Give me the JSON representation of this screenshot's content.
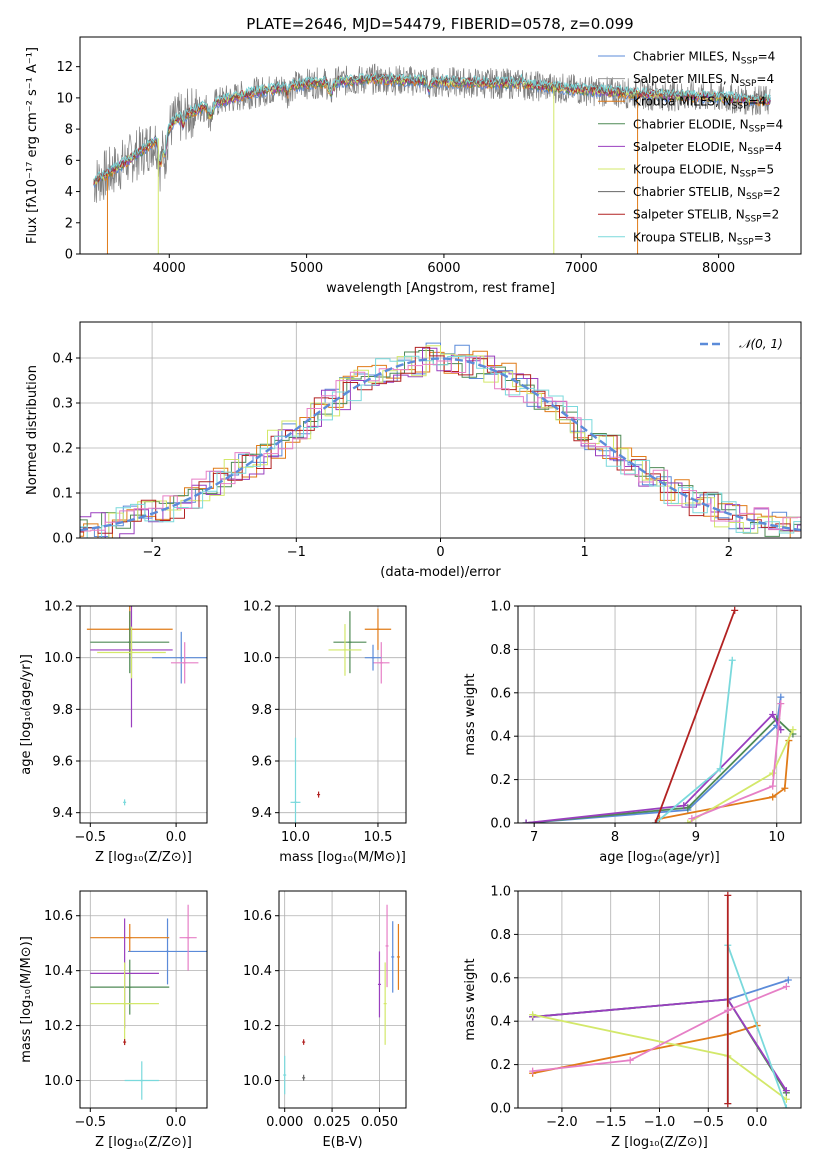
{
  "title": "PLATE=2646, MJD=54479, FIBERID=0578, z=0.099",
  "colors": {
    "Chabrier MILES": "#5b8bd9",
    "Salpeter MILES": "#9a9a9a",
    "Kroupa MILES": "#e07b18",
    "Chabrier ELODIE": "#4f8a55",
    "Salpeter ELODIE": "#9a3fbf",
    "Kroupa ELODIE": "#d3e86a",
    "Chabrier STELIB": "#666666",
    "Salpeter STELIB": "#b22222",
    "Kroupa STELIB": "#7ad9dc",
    "pink": "#e67fc6",
    "gaussian": "#5b8bd9"
  },
  "chart_data": [
    {
      "id": "spectrum",
      "type": "line",
      "title": "PLATE=2646, MJD=54479, FIBERID=0578, z=0.099",
      "xlabel": "wavelength [Angstrom, rest frame]",
      "ylabel": "Flux [fλ10⁻¹⁷ erg cm⁻² s⁻¹ A⁻¹]",
      "xlim": [
        3350,
        8600
      ],
      "ylim": [
        0,
        13.9
      ],
      "xticks": [
        4000,
        5000,
        6000,
        7000,
        8000
      ],
      "yticks": [
        0,
        2,
        4,
        6,
        8,
        10,
        12
      ],
      "legend_position": "right",
      "legend": [
        {
          "text": "Chabrier MILES, N",
          "sub": "SSP",
          "tail": "=4"
        },
        {
          "text": "Salpeter MILES, N",
          "sub": "SSP",
          "tail": "=4"
        },
        {
          "text": "Kroupa MILES, N",
          "sub": "SSP",
          "tail": "=4"
        },
        {
          "text": "Chabrier ELODIE, N",
          "sub": "SSP",
          "tail": "=4"
        },
        {
          "text": "Salpeter ELODIE, N",
          "sub": "SSP",
          "tail": "=4"
        },
        {
          "text": "Kroupa ELODIE, N",
          "sub": "SSP",
          "tail": "=5"
        },
        {
          "text": "Chabrier STELIB, N",
          "sub": "SSP",
          "tail": "=2"
        },
        {
          "text": "Salpeter STELIB, N",
          "sub": "SSP",
          "tail": "=2"
        },
        {
          "text": "Kroupa STELIB, N",
          "sub": "SSP",
          "tail": "=3"
        }
      ],
      "continuum": [
        [
          3450,
          4.6
        ],
        [
          3600,
          5.4
        ],
        [
          3800,
          6.6
        ],
        [
          3950,
          7.6
        ],
        [
          4050,
          8.6
        ],
        [
          4300,
          9.6
        ],
        [
          4600,
          10.3
        ],
        [
          5000,
          10.9
        ],
        [
          5500,
          11.2
        ],
        [
          6000,
          11.0
        ],
        [
          6500,
          10.9
        ],
        [
          7000,
          10.5
        ],
        [
          7500,
          10.2
        ],
        [
          8000,
          10.0
        ],
        [
          8380,
          9.8
        ]
      ]
    },
    {
      "id": "residuals",
      "type": "histogram",
      "xlabel": "(data-model)/error",
      "ylabel": "Normed distribution",
      "xlim": [
        -2.5,
        2.5
      ],
      "ylim": [
        0,
        0.48
      ],
      "xticks": [
        -2,
        -1,
        0,
        1,
        2
      ],
      "yticks": [
        0.0,
        0.1,
        0.2,
        0.3,
        0.4
      ],
      "legend": "𝒩(0, 1)",
      "legend_position": "top-right"
    },
    {
      "id": "age-vs-Z",
      "type": "errorbar",
      "xlabel": "Z [log₁₀(Z/Z⊙)]",
      "ylabel": "age  [log₁₀(age/yr)]",
      "xlim": [
        -0.56,
        0.18
      ],
      "ylim": [
        9.36,
        10.2
      ],
      "xticks": [
        -0.5,
        0.0
      ],
      "yticks": [
        9.4,
        9.6,
        9.8,
        10.0,
        10.2
      ],
      "points": [
        {
          "m": "Chabrier MILES",
          "x": 0.03,
          "xe": 0.17,
          "y": 10.0,
          "ye": 0.1
        },
        {
          "m": "Kroupa MILES",
          "x": -0.27,
          "xe": 0.25,
          "y": 10.11,
          "ye": 0.1
        },
        {
          "m": "Chabrier ELODIE",
          "x": -0.27,
          "xe": 0.23,
          "y": 10.06,
          "ye": 0.12
        },
        {
          "m": "Salpeter ELODIE",
          "x": -0.26,
          "xe": 0.24,
          "y": 10.03,
          "ye": 0.3
        },
        {
          "m": "Kroupa ELODIE",
          "x": -0.26,
          "xe": 0.2,
          "y": 10.02,
          "ye": 0.1
        },
        {
          "m": "Kroupa STELIB",
          "x": -0.3,
          "xe": 0.0,
          "y": 9.44,
          "ye": 0.0
        },
        {
          "m": "pink",
          "x": 0.05,
          "xe": 0.08,
          "y": 9.98,
          "ye": 0.08
        }
      ]
    },
    {
      "id": "age-vs-mass",
      "type": "errorbar",
      "xlabel": "mass [log₁₀(M/M⊙)]",
      "ylabel": "",
      "xlim": [
        9.9,
        10.67
      ],
      "ylim": [
        9.36,
        10.2
      ],
      "xticks": [
        10.0,
        10.5
      ],
      "yticks": [
        9.4,
        9.6,
        9.8,
        10.0,
        10.2
      ],
      "points": [
        {
          "m": "Kroupa MILES",
          "x": 10.5,
          "xe": 0.08,
          "y": 10.11,
          "ye": 0.08
        },
        {
          "m": "Chabrier ELODIE",
          "x": 10.33,
          "xe": 0.1,
          "y": 10.06,
          "ye": 0.12
        },
        {
          "m": "Kroupa ELODIE",
          "x": 10.3,
          "xe": 0.1,
          "y": 10.03,
          "ye": 0.1
        },
        {
          "m": "Kroupa STELIB",
          "x": 10.0,
          "xe": 0.03,
          "y": 9.44,
          "ye": 0.25
        },
        {
          "m": "pink",
          "x": 10.52,
          "xe": 0.05,
          "y": 9.98,
          "ye": 0.08
        },
        {
          "m": "Chabrier MILES",
          "x": 10.47,
          "xe": 0.05,
          "y": 10.0,
          "ye": 0.05
        },
        {
          "m": "Salpeter STELIB",
          "x": 10.14,
          "xe": 0.0,
          "y": 9.47,
          "ye": 0.0
        }
      ]
    },
    {
      "id": "weight-vs-age",
      "type": "line",
      "xlabel": "age  [log₁₀(age/yr)]",
      "ylabel": "mass weight",
      "xlim": [
        6.8,
        10.3
      ],
      "ylim": [
        0,
        1.0
      ],
      "xticks": [
        7,
        8,
        9,
        10
      ],
      "yticks": [
        0.0,
        0.2,
        0.4,
        0.6,
        0.8,
        1.0
      ],
      "series": [
        {
          "m": "Chabrier MILES",
          "x": [
            6.9,
            8.9,
            10.0,
            10.05
          ],
          "y": [
            0.0,
            0.06,
            0.45,
            0.58
          ]
        },
        {
          "m": "Kroupa MILES",
          "x": [
            8.55,
            9.95,
            10.1,
            10.15
          ],
          "y": [
            0.02,
            0.12,
            0.16,
            0.38
          ]
        },
        {
          "m": "Chabrier ELODIE",
          "x": [
            6.9,
            8.9,
            10.0,
            10.2
          ],
          "y": [
            0.0,
            0.07,
            0.48,
            0.41
          ]
        },
        {
          "m": "Salpeter ELODIE",
          "x": [
            6.9,
            8.85,
            9.95,
            10.05
          ],
          "y": [
            0.0,
            0.08,
            0.5,
            0.43
          ]
        },
        {
          "m": "Kroupa ELODIE",
          "x": [
            8.9,
            9.95,
            10.2
          ],
          "y": [
            0.0,
            0.23,
            0.43
          ]
        },
        {
          "m": "Kroupa STELIB",
          "x": [
            8.5,
            9.3,
            9.45
          ],
          "y": [
            0.0,
            0.25,
            0.75
          ]
        },
        {
          "m": "Salpeter STELIB",
          "x": [
            8.5,
            9.48
          ],
          "y": [
            0.0,
            0.98
          ]
        },
        {
          "m": "pink",
          "x": [
            8.95,
            9.95,
            10.05
          ],
          "y": [
            0.02,
            0.17,
            0.55
          ]
        }
      ]
    },
    {
      "id": "mass-vs-Z",
      "type": "errorbar",
      "xlabel": "Z [log₁₀(Z/Z⊙)]",
      "ylabel": "mass [log₁₀(M/M⊙)]",
      "xlim": [
        -0.56,
        0.18
      ],
      "ylim": [
        9.9,
        10.69
      ],
      "xticks": [
        -0.5,
        0.0
      ],
      "yticks": [
        10.0,
        10.2,
        10.4,
        10.6
      ],
      "points": [
        {
          "m": "Chabrier MILES",
          "x": -0.05,
          "xe": 0.23,
          "y": 10.47,
          "ye": 0.12
        },
        {
          "m": "Kroupa MILES",
          "x": -0.27,
          "xe": 0.23,
          "y": 10.52,
          "ye": 0.05
        },
        {
          "m": "Chabrier ELODIE",
          "x": -0.27,
          "xe": 0.23,
          "y": 10.34,
          "ye": 0.1
        },
        {
          "m": "Salpeter ELODIE",
          "x": -0.3,
          "xe": 0.2,
          "y": 10.39,
          "ye": 0.2
        },
        {
          "m": "Kroupa ELODIE",
          "x": -0.3,
          "xe": 0.2,
          "y": 10.28,
          "ye": 0.15
        },
        {
          "m": "Kroupa STELIB",
          "x": -0.2,
          "xe": 0.1,
          "y": 10.0,
          "ye": 0.07
        },
        {
          "m": "Salpeter STELIB",
          "x": -0.3,
          "xe": 0.0,
          "y": 10.14,
          "ye": 0.0
        },
        {
          "m": "pink",
          "x": 0.07,
          "xe": 0.05,
          "y": 10.52,
          "ye": 0.12
        }
      ]
    },
    {
      "id": "EBV",
      "type": "errorbar",
      "xlabel": "E(B-V)",
      "ylabel": "",
      "xlim": [
        -0.003,
        0.064
      ],
      "ylim": [
        9.9,
        10.69
      ],
      "xticks": [
        0.0,
        0.025,
        0.05
      ],
      "yticks": [
        10.0,
        10.2,
        10.4,
        10.6
      ],
      "points": [
        {
          "m": "Kroupa STELIB",
          "x": 0.0,
          "y": 10.02,
          "ye": 0.07
        },
        {
          "m": "Salpeter STELIB",
          "x": 0.01,
          "y": 10.14,
          "ye": 0.01
        },
        {
          "m": "Chabrier STELIB",
          "x": 0.01,
          "y": 10.01,
          "ye": 0.0
        },
        {
          "m": "Salpeter ELODIE",
          "x": 0.05,
          "y": 10.35,
          "ye": 0.12
        },
        {
          "m": "Kroupa ELODIE",
          "x": 0.053,
          "y": 10.28,
          "ye": 0.15
        },
        {
          "m": "pink",
          "x": 0.054,
          "y": 10.49,
          "ye": 0.15
        },
        {
          "m": "Chabrier MILES",
          "x": 0.057,
          "y": 10.45,
          "ye": 0.13
        },
        {
          "m": "Kroupa MILES",
          "x": 0.06,
          "y": 10.45,
          "ye": 0.12
        }
      ]
    },
    {
      "id": "weight-vs-Z",
      "type": "line",
      "xlabel": "Z [log₁₀(Z/Z⊙)]",
      "ylabel": "mass weight",
      "xlim": [
        -2.45,
        0.45
      ],
      "ylim": [
        0,
        1.0
      ],
      "xticks": [
        -2.0,
        -1.5,
        -1.0,
        -0.5,
        0.0
      ],
      "yticks": [
        0.0,
        0.2,
        0.4,
        0.6,
        0.8,
        1.0
      ],
      "series": [
        {
          "m": "Chabrier MILES",
          "x": [
            -2.3,
            -0.3,
            0.32
          ],
          "y": [
            0.42,
            0.5,
            0.59
          ]
        },
        {
          "m": "Kroupa MILES",
          "x": [
            -2.3,
            -0.3,
            0.0
          ],
          "y": [
            0.16,
            0.34,
            0.38
          ]
        },
        {
          "m": "Chabrier ELODIE",
          "x": [
            -2.3,
            -0.3,
            0.3
          ],
          "y": [
            0.42,
            0.5,
            0.07
          ]
        },
        {
          "m": "Salpeter ELODIE",
          "x": [
            -2.3,
            -0.3,
            0.3
          ],
          "y": [
            0.42,
            0.5,
            0.08
          ]
        },
        {
          "m": "Kroupa ELODIE",
          "x": [
            -2.3,
            -0.3,
            0.3
          ],
          "y": [
            0.43,
            0.24,
            0.04
          ]
        },
        {
          "m": "Kroupa STELIB",
          "x": [
            -0.3,
            -0.3,
            0.3
          ],
          "y": [
            0.02,
            0.75,
            0.0
          ]
        },
        {
          "m": "Salpeter STELIB",
          "x": [
            -0.3,
            -0.3
          ],
          "y": [
            0.02,
            0.98
          ]
        },
        {
          "m": "pink",
          "x": [
            -2.3,
            -1.3,
            -0.3,
            0.3
          ],
          "y": [
            0.17,
            0.22,
            0.45,
            0.56
          ]
        }
      ]
    }
  ]
}
